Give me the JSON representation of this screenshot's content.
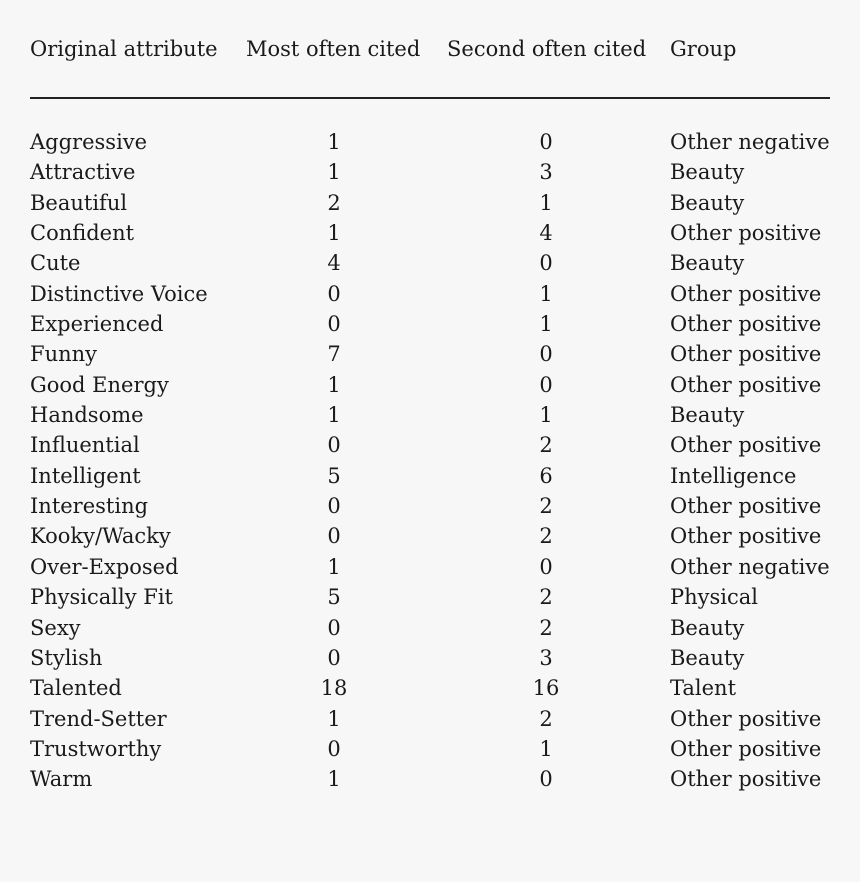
{
  "table": {
    "headers": {
      "attribute": "Original attribute",
      "most": "Most often cited",
      "second": "Second often cited",
      "group": "Group"
    },
    "rows": [
      {
        "attribute": "Aggressive",
        "most": "1",
        "second": "0",
        "group": "Other negative"
      },
      {
        "attribute": "Attractive",
        "most": "1",
        "second": "3",
        "group": "Beauty"
      },
      {
        "attribute": "Beautiful",
        "most": "2",
        "second": "1",
        "group": "Beauty"
      },
      {
        "attribute": "Confident",
        "most": "1",
        "second": "4",
        "group": "Other positive"
      },
      {
        "attribute": "Cute",
        "most": "4",
        "second": "0",
        "group": "Beauty"
      },
      {
        "attribute": "Distinctive Voice",
        "most": "0",
        "second": "1",
        "group": "Other positive"
      },
      {
        "attribute": "Experienced",
        "most": "0",
        "second": "1",
        "group": "Other positive"
      },
      {
        "attribute": "Funny",
        "most": "7",
        "second": "0",
        "group": "Other positive"
      },
      {
        "attribute": "Good Energy",
        "most": "1",
        "second": "0",
        "group": "Other positive"
      },
      {
        "attribute": "Handsome",
        "most": "1",
        "second": "1",
        "group": "Beauty"
      },
      {
        "attribute": "Influential",
        "most": "0",
        "second": "2",
        "group": "Other positive"
      },
      {
        "attribute": "Intelligent",
        "most": "5",
        "second": "6",
        "group": "Intelligence"
      },
      {
        "attribute": "Interesting",
        "most": "0",
        "second": "2",
        "group": "Other positive"
      },
      {
        "attribute": "Kooky/Wacky",
        "most": "0",
        "second": "2",
        "group": "Other positive"
      },
      {
        "attribute": "Over-Exposed",
        "most": "1",
        "second": "0",
        "group": "Other negative"
      },
      {
        "attribute": "Physically Fit",
        "most": "5",
        "second": "2",
        "group": "Physical"
      },
      {
        "attribute": "Sexy",
        "most": "0",
        "second": "2",
        "group": "Beauty"
      },
      {
        "attribute": "Stylish",
        "most": "0",
        "second": "3",
        "group": "Beauty"
      },
      {
        "attribute": "Talented",
        "most": "18",
        "second": "16",
        "group": "Talent"
      },
      {
        "attribute": "Trend-Setter",
        "most": "1",
        "second": "2",
        "group": "Other positive"
      },
      {
        "attribute": "Trustworthy",
        "most": "0",
        "second": "1",
        "group": "Other positive"
      },
      {
        "attribute": "Warm",
        "most": "1",
        "second": "0",
        "group": "Other positive"
      }
    ]
  }
}
